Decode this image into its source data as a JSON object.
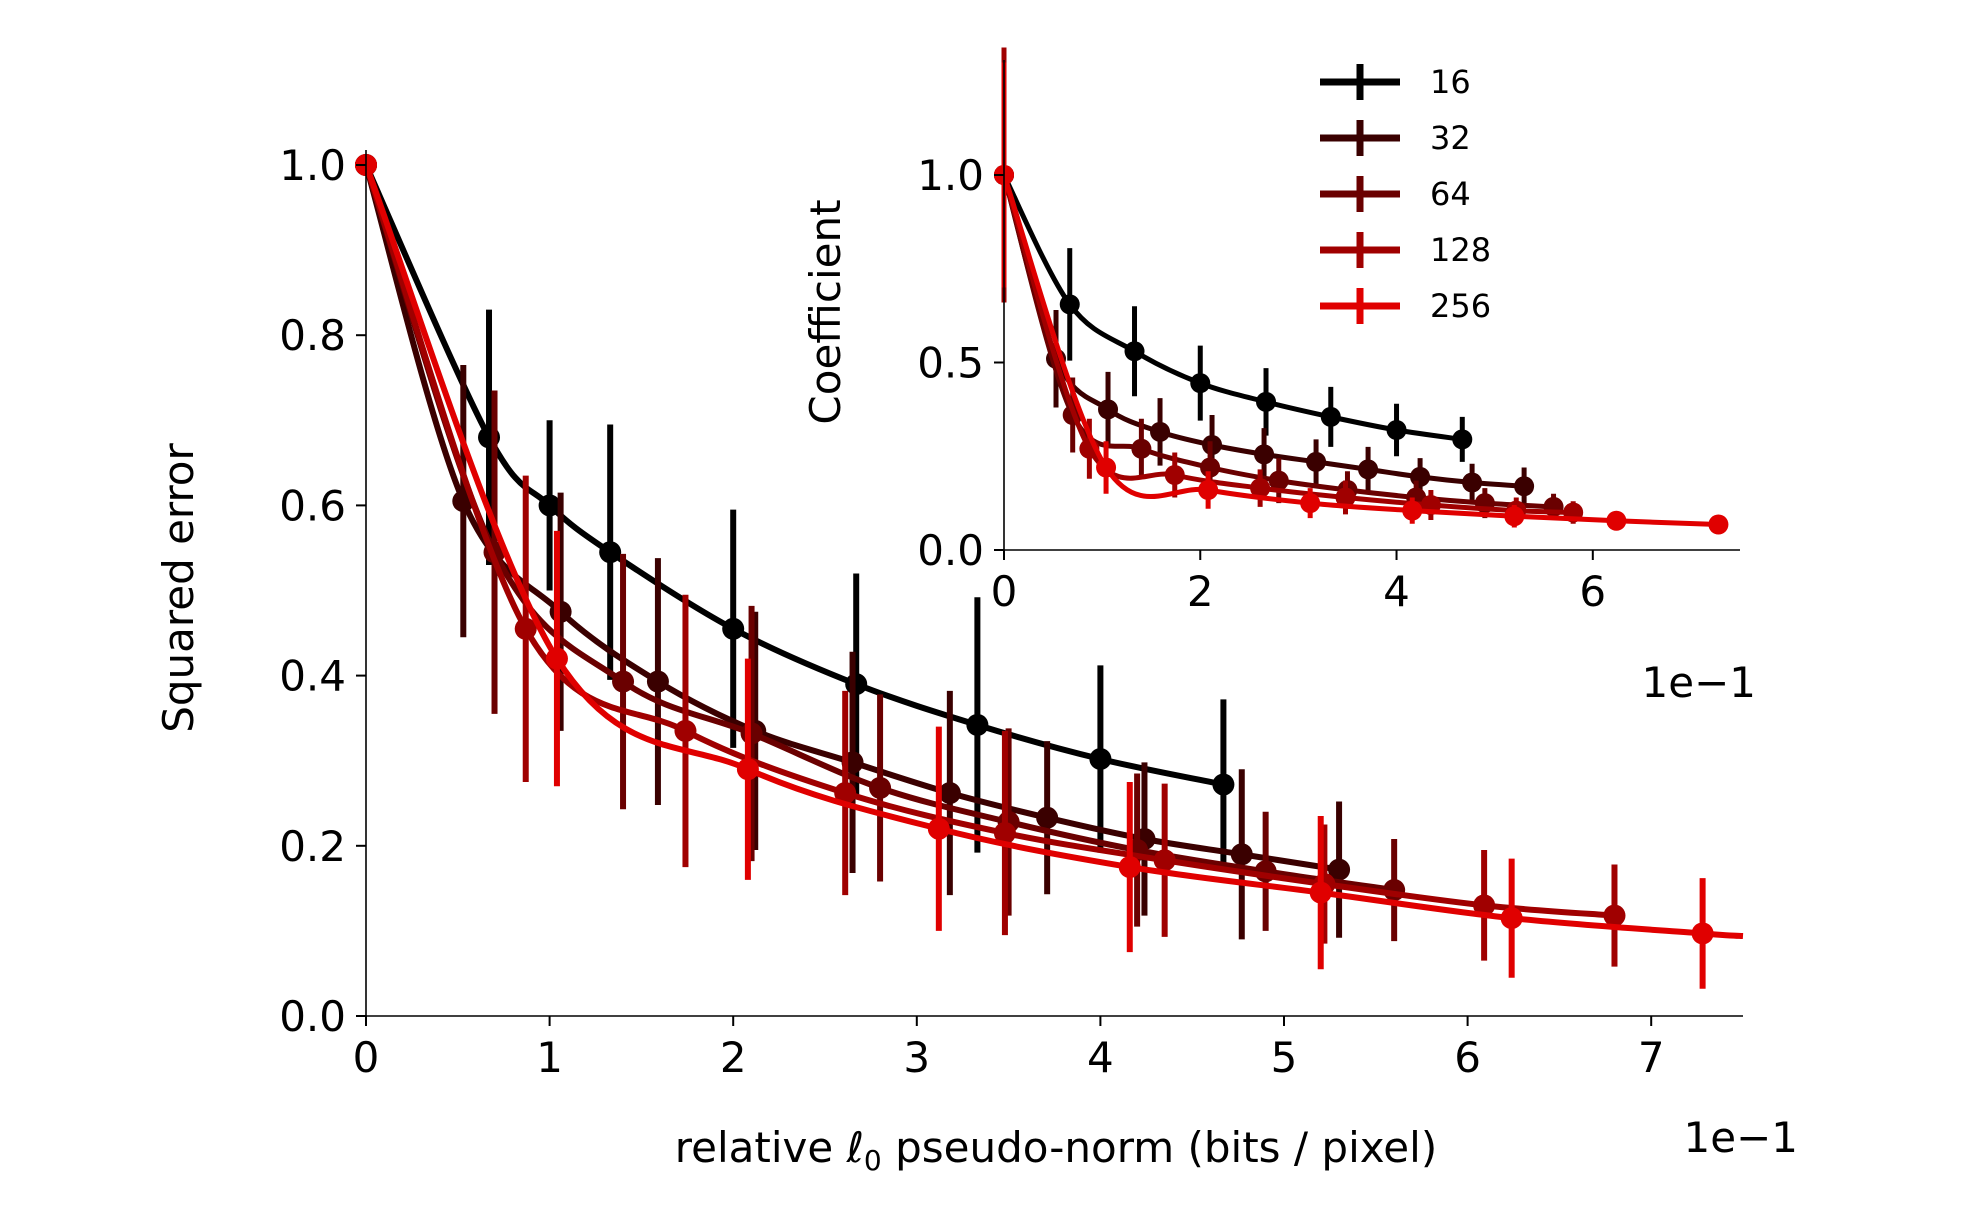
{
  "chart_data": [
    {
      "type": "line",
      "panel": "main",
      "xlabel": "relative ℓ₀ pseudo-norm (bits / pixel)",
      "xlabel_parts": [
        "relative ",
        "ℓ",
        "0",
        " pseudo-norm (bits / pixel)"
      ],
      "ylabel": "Squared error",
      "x_multiplier_label": "1e−1",
      "xlim": [
        0,
        7.5
      ],
      "ylim": [
        0,
        1.0
      ],
      "xticks": [
        0,
        1,
        2,
        3,
        4,
        5,
        6,
        7
      ],
      "yticks": [
        0.0,
        0.2,
        0.4,
        0.6,
        0.8,
        1.0
      ],
      "ytick_labels": [
        "0.0",
        "0.2",
        "0.4",
        "0.6",
        "0.8",
        "1.0"
      ],
      "grid": false,
      "series": [
        {
          "name": "16",
          "color": "#000000",
          "x": [
            0,
            0.67,
            1.0,
            1.33,
            2.0,
            2.67,
            3.33,
            4.0,
            4.67
          ],
          "y": [
            1.0,
            0.68,
            0.6,
            0.545,
            0.455,
            0.39,
            0.342,
            0.302,
            0.272
          ],
          "err": [
            0,
            0.15,
            0.1,
            0.15,
            0.14,
            0.13,
            0.15,
            0.11,
            0.1
          ]
        },
        {
          "name": "32",
          "color": "#3a0000",
          "x": [
            0,
            0.53,
            1.06,
            1.59,
            2.12,
            2.65,
            3.18,
            3.71,
            4.24,
            4.77,
            5.3
          ],
          "y": [
            1.0,
            0.605,
            0.475,
            0.393,
            0.335,
            0.298,
            0.262,
            0.233,
            0.208,
            0.19,
            0.172
          ],
          "err": [
            0,
            0.16,
            0.14,
            0.145,
            0.14,
            0.13,
            0.12,
            0.09,
            0.09,
            0.1,
            0.08
          ]
        },
        {
          "name": "64",
          "color": "#6a0000",
          "x": [
            0,
            0.7,
            1.4,
            2.1,
            2.8,
            3.5,
            4.2,
            4.9,
            5.6
          ],
          "y": [
            1.0,
            0.545,
            0.393,
            0.332,
            0.268,
            0.228,
            0.195,
            0.17,
            0.148
          ],
          "err": [
            0,
            0.19,
            0.15,
            0.15,
            0.11,
            0.11,
            0.09,
            0.07,
            0.06
          ]
        },
        {
          "name": "128",
          "color": "#a00000",
          "x": [
            0,
            0.87,
            1.74,
            2.61,
            3.48,
            4.35,
            5.22,
            6.09,
            6.8
          ],
          "y": [
            1.0,
            0.455,
            0.335,
            0.262,
            0.215,
            0.183,
            0.155,
            0.13,
            0.118
          ],
          "err": [
            0,
            0.18,
            0.16,
            0.12,
            0.12,
            0.09,
            0.07,
            0.065,
            0.06
          ]
        },
        {
          "name": "256",
          "color": "#e00000",
          "x": [
            0,
            1.04,
            2.08,
            3.12,
            4.16,
            5.2,
            6.24,
            7.28,
            7.5
          ],
          "y": [
            1.0,
            0.42,
            0.29,
            0.22,
            0.175,
            0.145,
            0.115,
            0.097,
            0.094
          ],
          "err": [
            0,
            0.15,
            0.13,
            0.12,
            0.1,
            0.09,
            0.07,
            0.065,
            0
          ]
        }
      ]
    },
    {
      "type": "line",
      "panel": "inset",
      "ylabel": "Coefficient",
      "xlabel": "",
      "x_multiplier_label": "1e−1",
      "xlim": [
        0,
        7.5
      ],
      "ylim": [
        0,
        1.4
      ],
      "xticks": [
        0,
        2,
        4,
        6
      ],
      "yticks": [
        0.0,
        0.5,
        1.0
      ],
      "ytick_labels": [
        "0.0",
        "0.5",
        "1.0"
      ],
      "grid": false,
      "legend": {
        "position": "top-right",
        "entries": [
          "16",
          "32",
          "64",
          "128",
          "256"
        ]
      },
      "series": [
        {
          "name": "16",
          "color": "#000000",
          "x": [
            0,
            0.67,
            1.33,
            2.0,
            2.67,
            3.33,
            4.0,
            4.67
          ],
          "y": [
            1.0,
            0.655,
            0.53,
            0.445,
            0.395,
            0.355,
            0.32,
            0.295
          ],
          "err": [
            0.3,
            0.15,
            0.12,
            0.1,
            0.09,
            0.08,
            0.07,
            0.06
          ]
        },
        {
          "name": "32",
          "color": "#3a0000",
          "x": [
            0,
            0.53,
            1.06,
            1.59,
            2.12,
            2.65,
            3.18,
            3.71,
            4.24,
            4.77,
            5.3
          ],
          "y": [
            1.0,
            0.51,
            0.375,
            0.315,
            0.28,
            0.255,
            0.235,
            0.215,
            0.195,
            0.18,
            0.17
          ],
          "err": [
            0.34,
            0.13,
            0.1,
            0.09,
            0.08,
            0.07,
            0.06,
            0.06,
            0.05,
            0.05,
            0.05
          ]
        },
        {
          "name": "64",
          "color": "#6a0000",
          "x": [
            0,
            0.7,
            1.4,
            2.1,
            2.8,
            3.5,
            4.2,
            4.9,
            5.6
          ],
          "y": [
            1.0,
            0.36,
            0.27,
            0.22,
            0.185,
            0.16,
            0.14,
            0.125,
            0.115
          ],
          "err": [
            0.34,
            0.1,
            0.08,
            0.07,
            0.06,
            0.05,
            0.045,
            0.04,
            0.035
          ]
        },
        {
          "name": "128",
          "color": "#a00000",
          "x": [
            0,
            0.87,
            1.74,
            2.61,
            3.48,
            4.35,
            5.22,
            5.8
          ],
          "y": [
            1.0,
            0.27,
            0.2,
            0.165,
            0.14,
            0.12,
            0.105,
            0.1
          ],
          "err": [
            0.34,
            0.08,
            0.06,
            0.05,
            0.045,
            0.04,
            0.035,
            0.03
          ]
        },
        {
          "name": "256",
          "color": "#e00000",
          "x": [
            0,
            1.04,
            2.08,
            3.12,
            4.16,
            5.2,
            6.24,
            7.28
          ],
          "y": [
            1.0,
            0.22,
            0.16,
            0.125,
            0.105,
            0.09,
            0.078,
            0.068
          ],
          "err": [
            0.3,
            0.07,
            0.05,
            0.04,
            0.035,
            0.03,
            0.025,
            0.02
          ]
        }
      ]
    }
  ]
}
